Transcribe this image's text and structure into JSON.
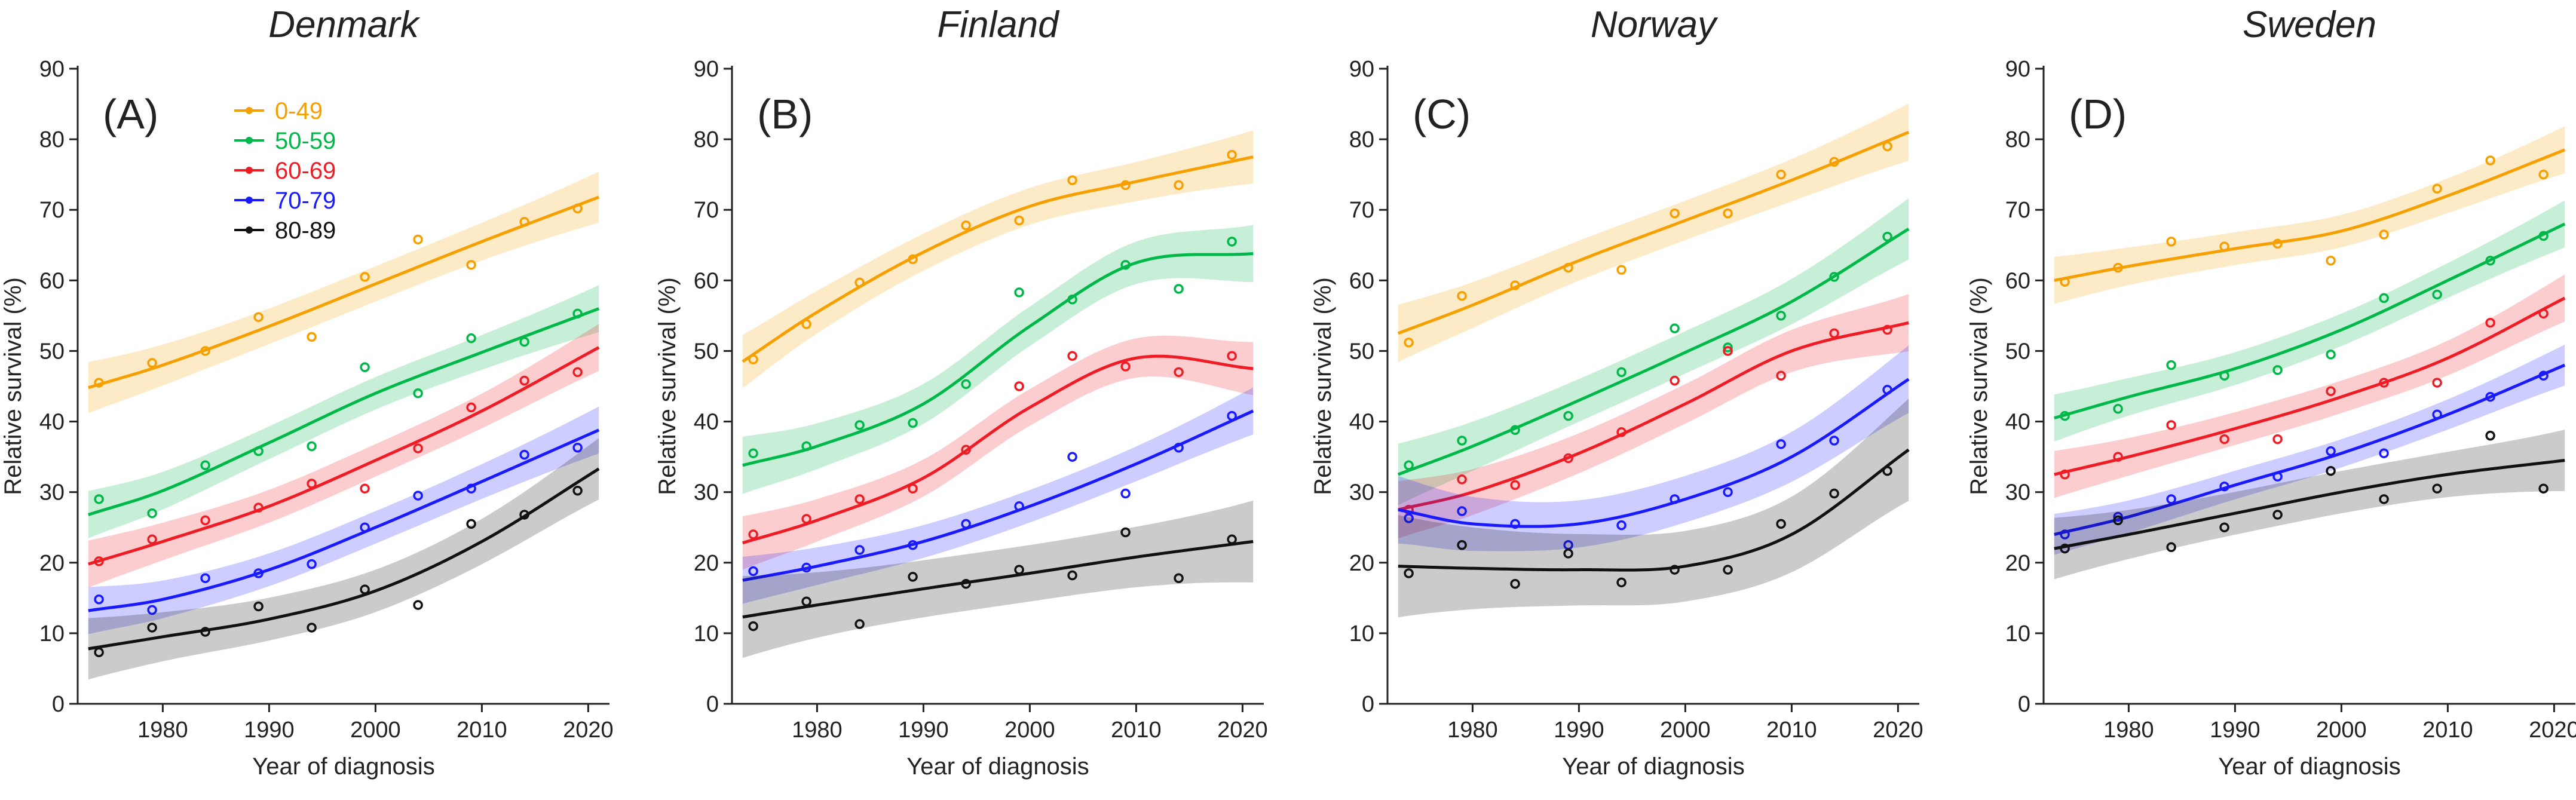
{
  "chart_data": [
    {
      "type": "line",
      "title": "Denmark",
      "panel_label": "(A)",
      "xlabel": "Year of diagnosis",
      "ylabel": "Relative survival (%)",
      "xlim": [
        1972,
        2022
      ],
      "ylim": [
        0,
        90
      ],
      "xticks": [
        1980,
        1990,
        2000,
        2010,
        2020
      ],
      "yticks": [
        0,
        10,
        20,
        30,
        40,
        50,
        60,
        70,
        80,
        90
      ],
      "x_points": [
        1974,
        1979,
        1984,
        1989,
        1994,
        1999,
        2004,
        2009,
        2014,
        2019
      ],
      "legend": [
        "0-49",
        "50-59",
        "60-69",
        "70-79",
        "80-89"
      ],
      "series": [
        {
          "name": "0-49",
          "color": "#f5a000",
          "points": [
            45.5,
            48.3,
            50.0,
            54.8,
            52.0,
            60.5,
            65.8,
            62.2,
            68.3,
            70.2
          ],
          "fit_x": [
            1973,
            1980,
            1990,
            2000,
            2010,
            2021
          ],
          "fit": [
            44.8,
            48.0,
            53.5,
            59.5,
            65.5,
            71.8
          ],
          "ci": 2.5
        },
        {
          "name": "50-59",
          "color": "#00b84a",
          "points": [
            29.0,
            27.0,
            33.8,
            35.8,
            36.5,
            47.7,
            44.0,
            51.8,
            51.3,
            55.3
          ],
          "fit_x": [
            1973,
            1980,
            1990,
            2000,
            2010,
            2021
          ],
          "fit": [
            26.8,
            30.2,
            37.0,
            44.0,
            49.8,
            56.0
          ],
          "ci": 2.3
        },
        {
          "name": "60-69",
          "color": "#ee1c25",
          "points": [
            20.2,
            23.3,
            26.0,
            27.8,
            31.2,
            30.5,
            36.2,
            42.0,
            45.8,
            47.0
          ],
          "fit_x": [
            1973,
            1980,
            1990,
            2000,
            2010,
            2021
          ],
          "fit": [
            19.8,
            23.0,
            28.0,
            34.5,
            41.5,
            50.5
          ],
          "ci": 2.3
        },
        {
          "name": "70-79",
          "color": "#1a1aff",
          "points": [
            14.8,
            13.3,
            17.8,
            18.5,
            19.8,
            25.0,
            29.5,
            30.5,
            35.3,
            36.3
          ],
          "fit_x": [
            1973,
            1980,
            1990,
            2000,
            2010,
            2021
          ],
          "fit": [
            13.2,
            14.8,
            19.0,
            25.0,
            31.5,
            38.8
          ],
          "ci": 2.3
        },
        {
          "name": "80-89",
          "color": "#111111",
          "points": [
            7.3,
            10.8,
            10.2,
            13.8,
            10.8,
            16.2,
            14.0,
            25.5,
            26.8,
            30.2
          ],
          "fit_x": [
            1973,
            1980,
            1990,
            2000,
            2010,
            2021
          ],
          "fit": [
            7.8,
            9.5,
            12.0,
            16.0,
            23.0,
            33.3
          ],
          "ci": 3.0
        }
      ]
    },
    {
      "type": "line",
      "title": "Finland",
      "panel_label": "(B)",
      "xlabel": "Year of diagnosis",
      "ylabel": "Relative survival (%)",
      "xlim": [
        1972,
        2022
      ],
      "ylim": [
        0,
        90
      ],
      "xticks": [
        1980,
        1990,
        2000,
        2010,
        2020
      ],
      "yticks": [
        0,
        10,
        20,
        30,
        40,
        50,
        60,
        70,
        80,
        90
      ],
      "x_points": [
        1974,
        1979,
        1984,
        1989,
        1994,
        1999,
        2004,
        2009,
        2014,
        2019
      ],
      "legend": [],
      "series": [
        {
          "name": "0-49",
          "color": "#f5a000",
          "points": [
            48.8,
            53.8,
            59.7,
            63.0,
            67.8,
            68.5,
            74.2,
            73.5,
            73.5,
            77.8
          ],
          "fit_x": [
            1973,
            1980,
            1990,
            2000,
            2010,
            2021
          ],
          "fit": [
            48.5,
            55.5,
            64.0,
            70.5,
            74.0,
            77.5
          ],
          "ci": 2.6
        },
        {
          "name": "50-59",
          "color": "#00b84a",
          "points": [
            35.5,
            36.5,
            39.5,
            39.8,
            45.3,
            58.3,
            57.3,
            62.2,
            58.8,
            65.5
          ],
          "fit_x": [
            1973,
            1980,
            1990,
            2000,
            2010,
            2021
          ],
          "fit": [
            33.8,
            36.5,
            42.5,
            53.5,
            62.5,
            63.8
          ],
          "ci": 2.8
        },
        {
          "name": "60-69",
          "color": "#ee1c25",
          "points": [
            24.0,
            26.2,
            29.0,
            30.5,
            36.0,
            45.0,
            49.3,
            47.8,
            47.0,
            49.3
          ],
          "fit_x": [
            1973,
            1980,
            1990,
            2000,
            2010,
            2021
          ],
          "fit": [
            22.8,
            26.0,
            32.0,
            42.0,
            49.0,
            47.5
          ],
          "ci": 2.6
        },
        {
          "name": "70-79",
          "color": "#1a1aff",
          "points": [
            18.8,
            19.3,
            21.8,
            22.5,
            25.5,
            28.0,
            35.0,
            29.8,
            36.3,
            40.8
          ],
          "fit_x": [
            1973,
            1980,
            1990,
            2000,
            2010,
            2021
          ],
          "fit": [
            17.5,
            19.5,
            23.0,
            28.0,
            34.0,
            41.5
          ],
          "ci": 2.3
        },
        {
          "name": "80-89",
          "color": "#111111",
          "points": [
            11.0,
            14.5,
            11.3,
            18.0,
            17.0,
            19.0,
            18.2,
            24.3,
            17.8,
            23.3
          ],
          "fit_x": [
            1973,
            1980,
            1990,
            2000,
            2010,
            2021
          ],
          "fit": [
            12.3,
            14.0,
            16.3,
            18.5,
            20.8,
            23.0
          ],
          "ci": 4.0
        }
      ]
    },
    {
      "type": "line",
      "title": "Norway",
      "panel_label": "(C)",
      "xlabel": "Year of diagnosis",
      "ylabel": "Relative survival (%)",
      "xlim": [
        1972,
        2022
      ],
      "ylim": [
        0,
        90
      ],
      "xticks": [
        1980,
        1990,
        2000,
        2010,
        2020
      ],
      "yticks": [
        0,
        10,
        20,
        30,
        40,
        50,
        60,
        70,
        80,
        90
      ],
      "x_points": [
        1974,
        1979,
        1984,
        1989,
        1994,
        1999,
        2004,
        2009,
        2014,
        2019
      ],
      "legend": [],
      "series": [
        {
          "name": "0-49",
          "color": "#f5a000",
          "points": [
            51.2,
            57.8,
            59.3,
            61.8,
            61.5,
            69.5,
            69.5,
            75.0,
            76.8,
            79.0
          ],
          "fit_x": [
            1973,
            1980,
            1990,
            2000,
            2010,
            2021
          ],
          "fit": [
            52.5,
            56.5,
            62.8,
            68.5,
            74.2,
            81.0
          ],
          "ci": 2.8
        },
        {
          "name": "50-59",
          "color": "#00b84a",
          "points": [
            33.8,
            37.3,
            38.8,
            40.8,
            47.0,
            53.2,
            50.5,
            55.0,
            60.5,
            66.2
          ],
          "fit_x": [
            1973,
            1980,
            1990,
            2000,
            2010,
            2021
          ],
          "fit": [
            32.5,
            36.5,
            43.0,
            49.8,
            57.0,
            67.3
          ],
          "ci": 3.0
        },
        {
          "name": "60-69",
          "color": "#ee1c25",
          "points": [
            27.5,
            31.8,
            31.0,
            34.8,
            38.5,
            45.8,
            50.0,
            46.5,
            52.5,
            53.0
          ],
          "fit_x": [
            1973,
            1980,
            1990,
            2000,
            2010,
            2021
          ],
          "fit": [
            27.5,
            30.0,
            35.5,
            42.5,
            50.0,
            54.0
          ],
          "ci": 2.8
        },
        {
          "name": "70-79",
          "color": "#1a1aff",
          "points": [
            26.3,
            27.3,
            25.5,
            22.5,
            25.3,
            29.0,
            30.0,
            36.8,
            37.3,
            44.5
          ],
          "fit_x": [
            1973,
            1980,
            1990,
            2000,
            2010,
            2021
          ],
          "fit": [
            27.5,
            25.5,
            25.5,
            29.0,
            35.0,
            46.0
          ],
          "ci": 3.3
        },
        {
          "name": "80-89",
          "color": "#111111",
          "points": [
            18.5,
            22.5,
            17.0,
            21.3,
            17.2,
            19.0,
            19.0,
            25.5,
            29.8,
            33.0
          ],
          "fit_x": [
            1973,
            1980,
            1990,
            2000,
            2010,
            2021
          ],
          "fit": [
            19.5,
            19.2,
            19.0,
            19.5,
            24.0,
            36.0
          ],
          "ci": 5.0
        }
      ]
    },
    {
      "type": "line",
      "title": "Sweden",
      "panel_label": "(D)",
      "xlabel": "Year of diagnosis",
      "ylabel": "Relative survival (%)",
      "xlim": [
        1972,
        2022
      ],
      "ylim": [
        0,
        90
      ],
      "xticks": [
        1980,
        1990,
        2000,
        2010,
        2020
      ],
      "yticks": [
        0,
        10,
        20,
        30,
        40,
        50,
        60,
        70,
        80,
        90
      ],
      "x_points": [
        1974,
        1979,
        1984,
        1989,
        1994,
        1999,
        2004,
        2009,
        2014,
        2019
      ],
      "legend": [],
      "series": [
        {
          "name": "0-49",
          "color": "#f5a000",
          "points": [
            59.8,
            61.8,
            65.5,
            64.8,
            65.2,
            62.8,
            66.5,
            73.0,
            77.0,
            75.0
          ],
          "fit_x": [
            1973,
            1980,
            1990,
            2000,
            2010,
            2021
          ],
          "fit": [
            60.0,
            62.0,
            64.5,
            67.0,
            72.0,
            78.5
          ],
          "ci": 2.3
        },
        {
          "name": "50-59",
          "color": "#00b84a",
          "points": [
            40.8,
            41.8,
            48.0,
            46.5,
            47.3,
            49.5,
            57.5,
            58.0,
            62.8,
            66.3
          ],
          "fit_x": [
            1973,
            1980,
            1990,
            2000,
            2010,
            2021
          ],
          "fit": [
            40.5,
            43.5,
            47.5,
            53.0,
            60.0,
            68.0
          ],
          "ci": 2.3
        },
        {
          "name": "60-69",
          "color": "#ee1c25",
          "points": [
            32.5,
            35.0,
            39.5,
            37.5,
            37.5,
            44.3,
            45.5,
            45.5,
            54.0,
            55.3
          ],
          "fit_x": [
            1973,
            1980,
            1990,
            2000,
            2010,
            2021
          ],
          "fit": [
            32.5,
            35.0,
            39.0,
            43.5,
            49.0,
            57.5
          ],
          "ci": 2.3
        },
        {
          "name": "70-79",
          "color": "#1a1aff",
          "points": [
            24.0,
            26.5,
            29.0,
            30.8,
            32.2,
            35.8,
            35.5,
            41.0,
            43.5,
            46.5
          ],
          "fit_x": [
            1973,
            1980,
            1990,
            2000,
            2010,
            2021
          ],
          "fit": [
            24.0,
            26.5,
            31.0,
            35.5,
            41.0,
            48.0
          ],
          "ci": 2.0
        },
        {
          "name": "80-89",
          "color": "#111111",
          "points": [
            22.0,
            26.0,
            22.2,
            25.0,
            26.8,
            33.0,
            29.0,
            30.5,
            38.0,
            30.5
          ],
          "fit_x": [
            1973,
            1980,
            1990,
            2000,
            2010,
            2021
          ],
          "fit": [
            22.0,
            24.0,
            27.0,
            30.0,
            32.5,
            34.5
          ],
          "ci": 3.0
        }
      ]
    }
  ]
}
